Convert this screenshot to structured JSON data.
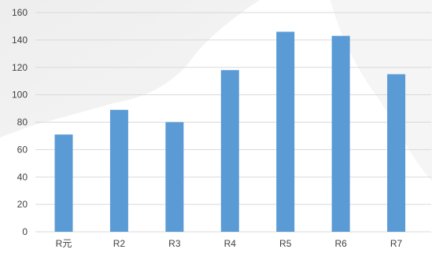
{
  "chart_data": {
    "type": "bar",
    "title": "",
    "xlabel": "",
    "ylabel": "",
    "categories": [
      "R元",
      "R2",
      "R3",
      "R4",
      "R5",
      "R6",
      "R7"
    ],
    "values": [
      71,
      89,
      80,
      118,
      146,
      143,
      115
    ],
    "ylim": [
      0,
      160
    ],
    "yticks": [
      0,
      20,
      40,
      60,
      80,
      100,
      120,
      140,
      160
    ],
    "grid": true,
    "legend": "none",
    "colors": {
      "bar": "#5b9bd5",
      "grid": "#d9d9d9",
      "text": "#404040"
    }
  }
}
